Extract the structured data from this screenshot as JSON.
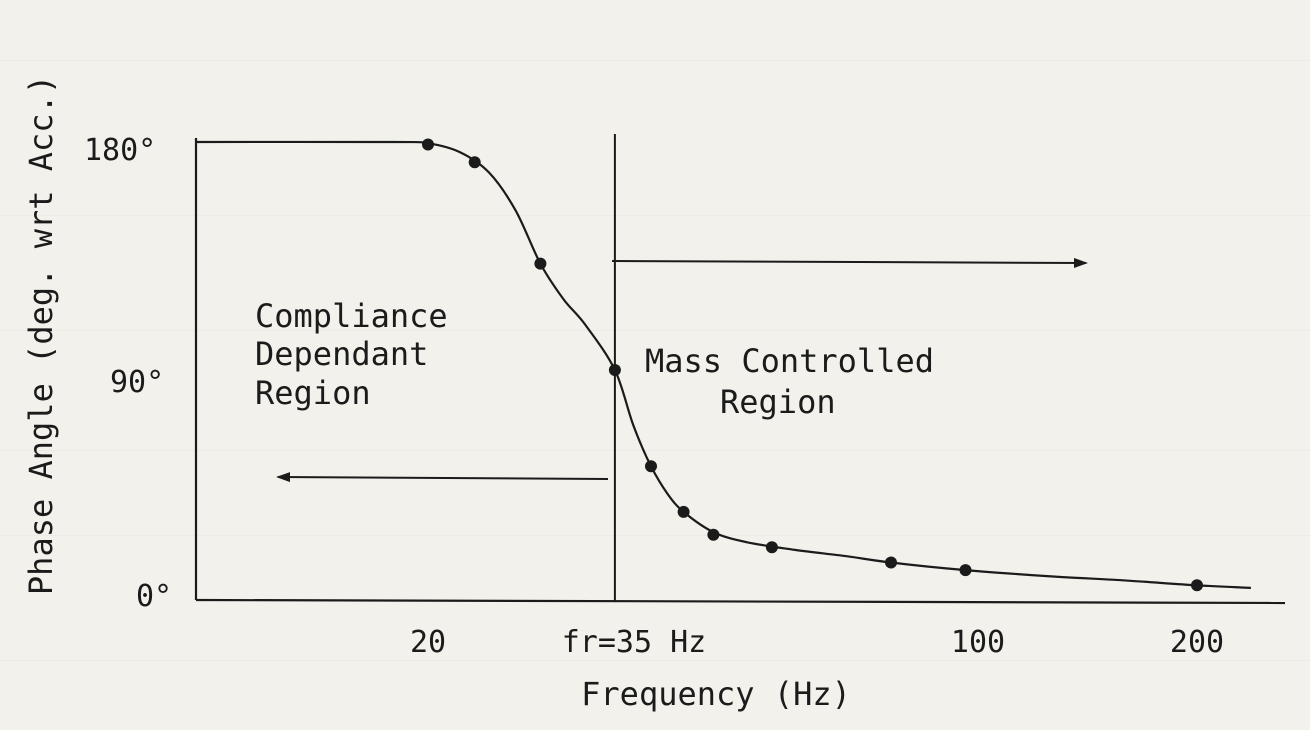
{
  "chart_data": {
    "type": "line",
    "title": "",
    "xlabel": "Frequency (Hz)",
    "ylabel": "Phase Angle (deg. wrt Acc.)",
    "x_scale": "log",
    "xlim": [
      10,
      240
    ],
    "ylim": [
      0,
      180
    ],
    "x_ticks": [
      {
        "value": 20,
        "label": "20"
      },
      {
        "value": 35,
        "label": "fr=35 Hz"
      },
      {
        "value": 100,
        "label": "100"
      },
      {
        "value": 200,
        "label": "200"
      }
    ],
    "y_ticks": [
      {
        "value": 0,
        "label": "0°"
      },
      {
        "value": 90,
        "label": "90°"
      },
      {
        "value": 180,
        "label": "180°"
      }
    ],
    "series": [
      {
        "points": [
          {
            "x": 20,
            "y": 179
          },
          {
            "x": 23,
            "y": 172
          },
          {
            "x": 28,
            "y": 132
          },
          {
            "x": 35,
            "y": 90
          },
          {
            "x": 39,
            "y": 52
          },
          {
            "x": 43,
            "y": 34
          },
          {
            "x": 47,
            "y": 25
          },
          {
            "x": 56,
            "y": 20
          },
          {
            "x": 80,
            "y": 14
          },
          {
            "x": 100,
            "y": 11
          },
          {
            "x": 200,
            "y": 5
          }
        ],
        "curve": [
          {
            "x": 10,
            "y": 180
          },
          {
            "x": 18,
            "y": 180
          },
          {
            "x": 20,
            "y": 179.5
          },
          {
            "x": 22,
            "y": 176
          },
          {
            "x": 24,
            "y": 168
          },
          {
            "x": 26,
            "y": 153
          },
          {
            "x": 28,
            "y": 132
          },
          {
            "x": 30,
            "y": 118
          },
          {
            "x": 32,
            "y": 108
          },
          {
            "x": 35,
            "y": 90
          },
          {
            "x": 37,
            "y": 68
          },
          {
            "x": 39,
            "y": 52
          },
          {
            "x": 41,
            "y": 41
          },
          {
            "x": 43,
            "y": 34
          },
          {
            "x": 47,
            "y": 26
          },
          {
            "x": 52,
            "y": 22
          },
          {
            "x": 60,
            "y": 19
          },
          {
            "x": 70,
            "y": 16.5
          },
          {
            "x": 80,
            "y": 14
          },
          {
            "x": 100,
            "y": 11
          },
          {
            "x": 130,
            "y": 8.5
          },
          {
            "x": 160,
            "y": 7
          },
          {
            "x": 200,
            "y": 5
          },
          {
            "x": 235,
            "y": 4
          }
        ]
      }
    ],
    "annotations": {
      "left_region": [
        "Compliance",
        "Dependant",
        "Region"
      ],
      "right_region": [
        "Mass Controlled",
        "Region"
      ]
    },
    "resonance_marker_x": 35,
    "grid": false,
    "color": "#1b1b1b"
  }
}
